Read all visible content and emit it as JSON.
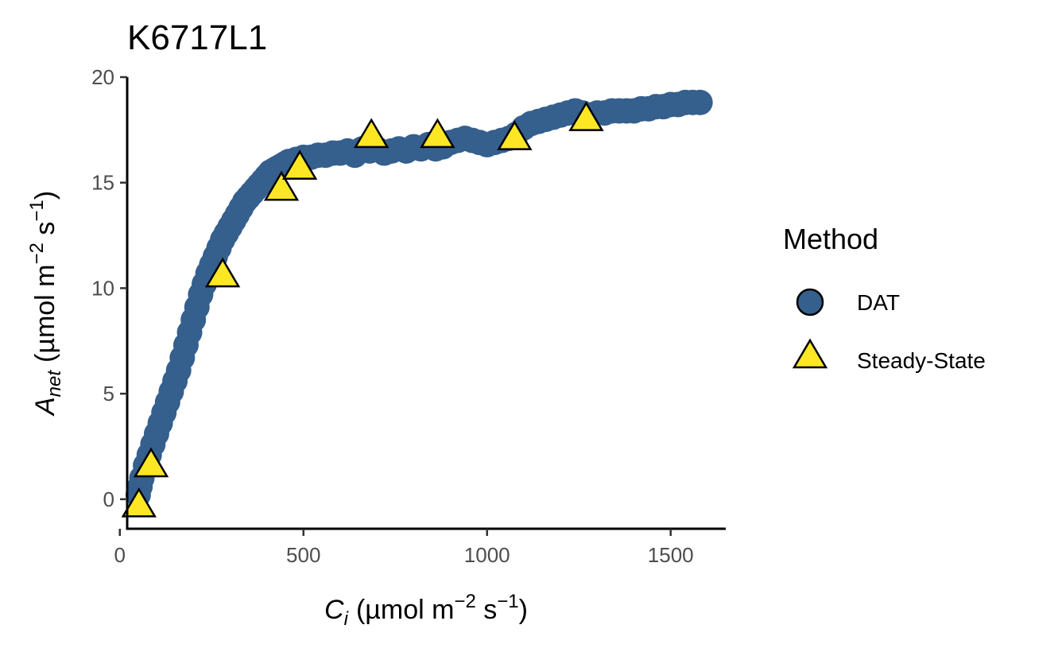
{
  "chart_data": {
    "type": "scatter",
    "title": "K6717L1",
    "xlabel": {
      "main": "C",
      "sub": "i",
      "units_pre": "(µmol m",
      "sup1": "−2",
      "mid": " s",
      "sup2": "−1",
      "end": ")"
    },
    "ylabel": {
      "main": "A",
      "sub": "net",
      "units_pre": "(µmol m",
      "sup1": "−2",
      "mid": " s",
      "sup2": "−1",
      "end": ")"
    },
    "xlim": [
      20,
      1650
    ],
    "ylim": [
      -1.4,
      20
    ],
    "x_ticks": [
      0,
      500,
      1000,
      1500
    ],
    "x_tick_labels": [
      "0",
      "500",
      "1000",
      "1500"
    ],
    "y_ticks": [
      0,
      5,
      10,
      15,
      20
    ],
    "y_tick_labels": [
      "0",
      "5",
      "10",
      "15",
      "20"
    ],
    "grid": false,
    "legend": {
      "title": "Method",
      "position": "right",
      "entries": [
        {
          "label": "DAT",
          "shape": "circle",
          "color": "#355F8D"
        },
        {
          "label": "Steady-State",
          "shape": "triangle",
          "color": "#FDE725"
        }
      ]
    },
    "series": [
      {
        "name": "DAT",
        "shape": "circle",
        "color": "#355F8D",
        "x": [
          50,
          55,
          60,
          70,
          80,
          90,
          100,
          110,
          120,
          130,
          140,
          150,
          160,
          170,
          180,
          190,
          200,
          210,
          220,
          230,
          240,
          250,
          260,
          270,
          280,
          290,
          300,
          310,
          320,
          330,
          340,
          350,
          360,
          370,
          380,
          390,
          400,
          410,
          420,
          430,
          440,
          450,
          460,
          470,
          480,
          490,
          500,
          520,
          540,
          560,
          580,
          600,
          620,
          640,
          660,
          680,
          700,
          720,
          740,
          760,
          780,
          800,
          820,
          840,
          860,
          880,
          900,
          920,
          940,
          960,
          980,
          1000,
          1020,
          1040,
          1060,
          1080,
          1100,
          1120,
          1140,
          1160,
          1180,
          1200,
          1220,
          1240,
          1260,
          1280,
          1300,
          1320,
          1340,
          1360,
          1380,
          1400,
          1420,
          1440,
          1460,
          1480,
          1500,
          1520,
          1540,
          1560,
          1580
        ],
        "y": [
          0.2,
          0.6,
          1.0,
          1.6,
          2.1,
          2.6,
          3.1,
          3.6,
          4.1,
          4.6,
          5.1,
          5.6,
          6.1,
          6.7,
          7.3,
          7.9,
          8.5,
          9.1,
          9.7,
          10.2,
          10.7,
          11.1,
          11.5,
          11.9,
          12.3,
          12.6,
          12.9,
          13.2,
          13.5,
          13.8,
          14.1,
          14.3,
          14.5,
          14.7,
          14.9,
          15.1,
          15.3,
          15.5,
          15.6,
          15.7,
          15.8,
          15.9,
          16.0,
          16.0,
          16.1,
          16.1,
          16.2,
          16.2,
          16.3,
          16.3,
          16.4,
          16.4,
          16.5,
          16.3,
          16.6,
          16.5,
          16.6,
          16.4,
          16.5,
          16.6,
          16.5,
          16.7,
          16.6,
          16.8,
          16.6,
          16.7,
          16.9,
          17.0,
          17.1,
          17.0,
          16.9,
          16.8,
          16.9,
          17.0,
          17.1,
          17.3,
          17.6,
          17.8,
          17.9,
          18.0,
          18.1,
          18.2,
          18.3,
          18.4,
          18.3,
          18.2,
          18.3,
          18.3,
          18.4,
          18.4,
          18.4,
          18.4,
          18.5,
          18.5,
          18.6,
          18.6,
          18.7,
          18.7,
          18.8,
          18.8,
          18.8
        ]
      },
      {
        "name": "Steady-State",
        "shape": "triangle",
        "color": "#FDE725",
        "x": [
          52,
          85,
          280,
          440,
          490,
          685,
          865,
          1075,
          1270
        ],
        "y": [
          -0.3,
          1.6,
          10.6,
          14.7,
          15.7,
          17.2,
          17.2,
          17.1,
          18.0
        ]
      }
    ]
  }
}
